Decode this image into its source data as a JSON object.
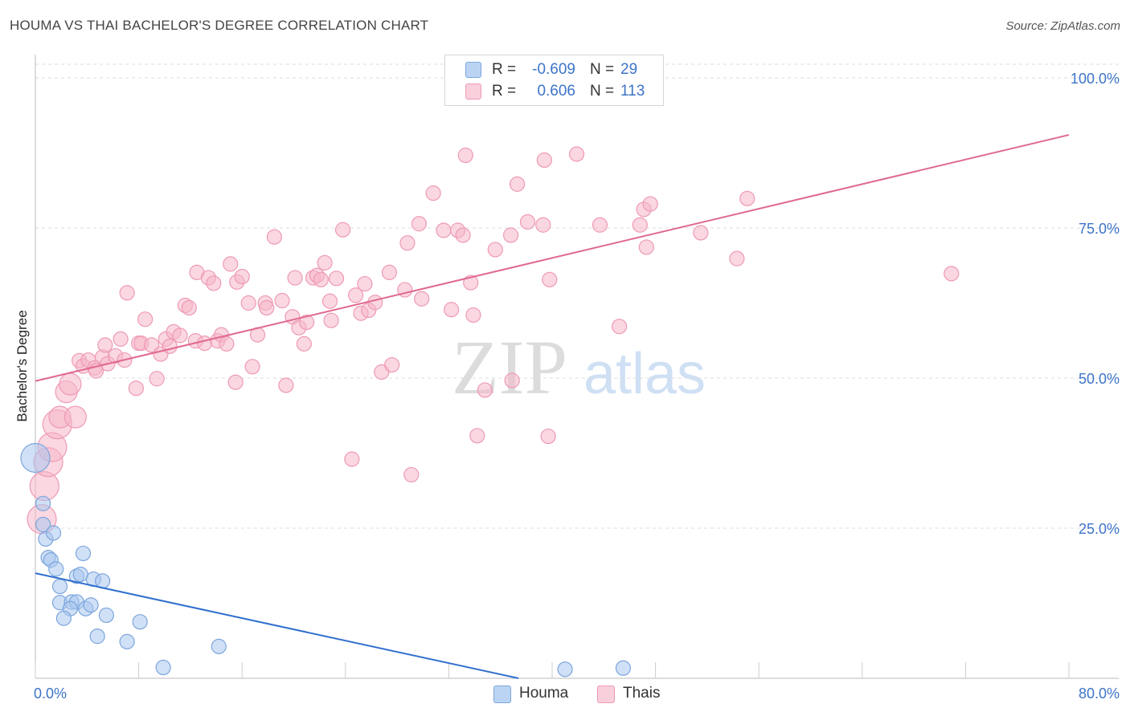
{
  "header": {
    "title": "HOUMA VS THAI BACHELOR'S DEGREE CORRELATION CHART",
    "source": "Source: ZipAtlas.com"
  },
  "legend_top": [
    {
      "r_label": "R =",
      "r_value": "-0.609",
      "n_label": "N =",
      "n_value": "29",
      "color": "#a9c7ef"
    },
    {
      "r_label": "R =",
      "r_value": "0.606",
      "n_label": "N =",
      "n_value": "113",
      "color": "#f5b7c9"
    }
  ],
  "legend_bottom": [
    {
      "label": "Houma",
      "color": "#a9c7ef"
    },
    {
      "label": "Thais",
      "color": "#f5b7c9"
    }
  ],
  "watermark": {
    "left": "ZIP",
    "right": "atlas"
  },
  "colors": {
    "houma_fill": "#a9c7ef",
    "houma_stroke": "#7ca6dd",
    "houma_line": "#2f6fce",
    "thai_fill": "#f5b7c9",
    "thai_stroke": "#ee9ab5",
    "thai_line": "#e0698f",
    "tick_label": "#3d74c8",
    "grid": "#dddddd"
  },
  "chart_data": {
    "type": "scatter",
    "title": "HOUMA VS THAI BACHELOR'S DEGREE CORRELATION CHART",
    "ylabel": "Bachelor's Degree",
    "xlabel": "",
    "xlim": [
      0,
      80
    ],
    "ylim": [
      0,
      100
    ],
    "x_tick_labels": [
      {
        "value": 0,
        "label": "0.0%"
      },
      {
        "value": 80,
        "label": "80.0%"
      }
    ],
    "y_tick_labels": [
      {
        "value": 25,
        "label": "25.0%"
      },
      {
        "value": 50,
        "label": "50.0%"
      },
      {
        "value": 75,
        "label": "75.0%"
      },
      {
        "value": 100,
        "label": "100.0%"
      }
    ],
    "grid": "horizontal dashed",
    "legend": "top-center and bottom",
    "series": [
      {
        "name": "Houma",
        "r": -0.609,
        "n": 29,
        "trend": [
          [
            0,
            17.5
          ],
          [
            37.4,
            0
          ]
        ],
        "points": [
          [
            0.0,
            36.7,
            2
          ],
          [
            0.6,
            29.1,
            1
          ],
          [
            0.6,
            25.6,
            1
          ],
          [
            0.8,
            23.2,
            1
          ],
          [
            1.4,
            24.2,
            1
          ],
          [
            1.0,
            20.1,
            1
          ],
          [
            1.2,
            19.7,
            1
          ],
          [
            1.6,
            18.2,
            1
          ],
          [
            3.7,
            20.8,
            1
          ],
          [
            3.2,
            17.0,
            1
          ],
          [
            3.5,
            17.3,
            1
          ],
          [
            4.5,
            16.5,
            1
          ],
          [
            5.2,
            16.2,
            1
          ],
          [
            1.9,
            15.3,
            1
          ],
          [
            1.9,
            12.6,
            1
          ],
          [
            2.8,
            12.7,
            1
          ],
          [
            3.2,
            12.7,
            1
          ],
          [
            2.7,
            11.6,
            1
          ],
          [
            3.9,
            11.6,
            1
          ],
          [
            4.3,
            12.2,
            1
          ],
          [
            2.2,
            10.0,
            1
          ],
          [
            5.5,
            10.5,
            1
          ],
          [
            8.1,
            9.4,
            1
          ],
          [
            4.8,
            7.0,
            1
          ],
          [
            7.1,
            6.1,
            1
          ],
          [
            14.2,
            5.3,
            1
          ],
          [
            9.9,
            1.8,
            1
          ],
          [
            41.0,
            1.5,
            1
          ],
          [
            45.5,
            1.7,
            1
          ]
        ]
      },
      {
        "name": "Thais",
        "r": 0.606,
        "n": 113,
        "trend": [
          [
            0,
            49.5
          ],
          [
            80,
            90.5
          ]
        ],
        "points": [
          [
            0.5,
            26.5,
            2
          ],
          [
            0.7,
            32.0,
            2
          ],
          [
            1.0,
            36.0,
            2
          ],
          [
            1.3,
            38.5,
            2
          ],
          [
            1.7,
            42.3,
            2
          ],
          [
            1.9,
            43.5,
            1.5
          ],
          [
            3.1,
            43.5,
            1.5
          ],
          [
            2.4,
            47.7,
            1.5
          ],
          [
            2.7,
            49.0,
            1.5
          ],
          [
            3.4,
            52.9,
            1
          ],
          [
            3.7,
            52.0,
            1
          ],
          [
            4.1,
            53.0,
            1
          ],
          [
            4.6,
            51.7,
            1
          ],
          [
            4.7,
            51.2,
            1
          ],
          [
            5.2,
            53.5,
            1
          ],
          [
            5.6,
            52.4,
            1
          ],
          [
            5.4,
            55.5,
            1
          ],
          [
            6.2,
            53.7,
            1
          ],
          [
            6.6,
            56.5,
            1
          ],
          [
            6.9,
            53.0,
            1
          ],
          [
            7.1,
            64.2,
            1
          ],
          [
            7.8,
            48.3,
            1
          ],
          [
            8.0,
            55.8,
            1
          ],
          [
            8.2,
            55.8,
            1
          ],
          [
            8.5,
            59.8,
            1
          ],
          [
            9.0,
            55.5,
            1
          ],
          [
            9.4,
            49.9,
            1
          ],
          [
            9.7,
            54.0,
            1
          ],
          [
            10.1,
            56.5,
            1
          ],
          [
            10.4,
            55.3,
            1
          ],
          [
            10.7,
            57.7,
            1
          ],
          [
            11.2,
            57.1,
            1
          ],
          [
            11.6,
            62.1,
            1
          ],
          [
            11.9,
            61.7,
            1
          ],
          [
            12.4,
            56.2,
            1
          ],
          [
            12.5,
            67.6,
            1
          ],
          [
            13.1,
            55.8,
            1
          ],
          [
            13.4,
            66.7,
            1
          ],
          [
            13.8,
            65.8,
            1
          ],
          [
            14.1,
            56.2,
            1
          ],
          [
            14.4,
            57.2,
            1
          ],
          [
            14.8,
            55.7,
            1
          ],
          [
            15.1,
            69.0,
            1
          ],
          [
            15.5,
            49.3,
            1
          ],
          [
            15.6,
            66.0,
            1
          ],
          [
            16.0,
            66.9,
            1
          ],
          [
            16.5,
            62.5,
            1
          ],
          [
            16.8,
            51.9,
            1
          ],
          [
            17.2,
            57.2,
            1
          ],
          [
            17.8,
            62.5,
            1
          ],
          [
            17.9,
            61.7,
            1
          ],
          [
            18.5,
            73.5,
            1
          ],
          [
            19.1,
            62.9,
            1
          ],
          [
            19.4,
            48.8,
            1
          ],
          [
            19.9,
            60.2,
            1
          ],
          [
            20.1,
            66.7,
            1
          ],
          [
            20.4,
            58.4,
            1
          ],
          [
            20.8,
            55.7,
            1
          ],
          [
            21.0,
            59.3,
            1
          ],
          [
            21.5,
            66.7,
            1
          ],
          [
            21.8,
            67.1,
            1
          ],
          [
            22.1,
            66.4,
            1
          ],
          [
            22.4,
            69.2,
            1
          ],
          [
            22.8,
            62.8,
            1
          ],
          [
            22.9,
            59.6,
            1
          ],
          [
            23.3,
            66.6,
            1
          ],
          [
            23.8,
            74.7,
            1
          ],
          [
            24.5,
            36.5,
            1
          ],
          [
            24.8,
            63.8,
            1
          ],
          [
            25.2,
            60.8,
            1
          ],
          [
            25.5,
            65.7,
            1
          ],
          [
            25.8,
            61.3,
            1
          ],
          [
            26.3,
            62.6,
            1
          ],
          [
            26.8,
            51.0,
            1
          ],
          [
            27.4,
            67.6,
            1
          ],
          [
            27.6,
            52.2,
            1
          ],
          [
            28.6,
            64.7,
            1
          ],
          [
            28.8,
            72.5,
            1
          ],
          [
            29.1,
            33.9,
            1
          ],
          [
            29.7,
            75.7,
            1
          ],
          [
            29.9,
            63.2,
            1
          ],
          [
            30.8,
            80.8,
            1
          ],
          [
            31.6,
            74.6,
            1
          ],
          [
            32.2,
            61.4,
            1
          ],
          [
            32.7,
            74.6,
            1
          ],
          [
            33.1,
            73.8,
            1
          ],
          [
            33.3,
            87.1,
            1
          ],
          [
            33.7,
            65.9,
            1
          ],
          [
            33.9,
            60.5,
            1
          ],
          [
            34.2,
            40.4,
            1
          ],
          [
            34.8,
            48.0,
            1
          ],
          [
            35.6,
            71.4,
            1
          ],
          [
            36.8,
            73.8,
            1
          ],
          [
            36.9,
            49.6,
            1
          ],
          [
            37.3,
            82.3,
            1
          ],
          [
            38.1,
            76.0,
            1
          ],
          [
            39.3,
            75.5,
            1
          ],
          [
            39.4,
            86.3,
            1
          ],
          [
            39.8,
            66.4,
            1
          ],
          [
            39.7,
            40.3,
            1
          ],
          [
            41.9,
            87.3,
            1
          ],
          [
            43.7,
            75.5,
            1
          ],
          [
            45.2,
            58.6,
            1
          ],
          [
            46.8,
            75.5,
            1
          ],
          [
            47.1,
            78.1,
            1
          ],
          [
            47.6,
            79.0,
            1
          ],
          [
            47.3,
            71.8,
            1
          ],
          [
            51.5,
            74.2,
            1
          ],
          [
            54.3,
            69.9,
            1
          ],
          [
            55.1,
            79.9,
            1
          ],
          [
            70.9,
            67.4,
            1
          ]
        ]
      }
    ]
  }
}
